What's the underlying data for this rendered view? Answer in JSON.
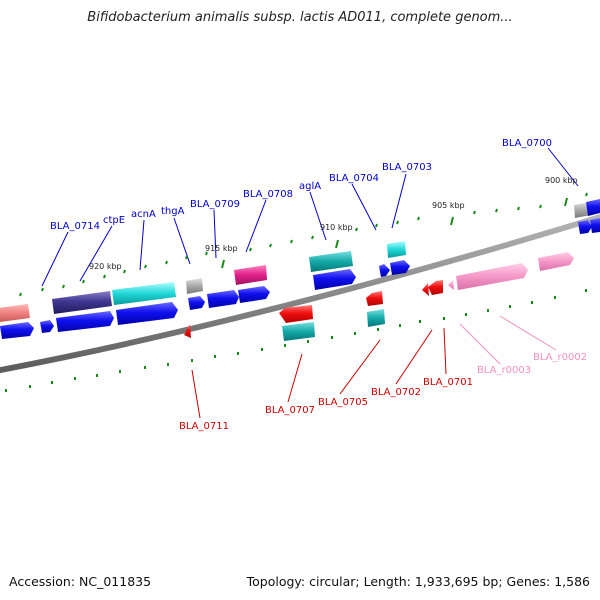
{
  "title": "Bifidobacterium animalis subsp. lactis AD011, complete genom...",
  "footer": {
    "accession": "Accession: NC_011835",
    "summary": "Topology: circular; Length: 1,933,695 bp; Genes: 1,586"
  },
  "ruler_labels": [
    "920 kbp",
    "915 kbp",
    "910 kbp",
    "905 kbp",
    "900 kbp"
  ],
  "upper_labels": [
    "BLA_0714",
    "ctpE",
    "acnA",
    "thgA",
    "BLA_0709",
    "BLA_0708",
    "aglA",
    "BLA_0704",
    "BLA_0703",
    "BLA_0700"
  ],
  "lower_labels": [
    "BLA_0711",
    "BLA_0707",
    "BLA_0705",
    "BLA_0702",
    "BLA_0701",
    "BLA_r0003",
    "BLA_r0002"
  ],
  "colors": {
    "forward_gene": "#0000e0",
    "reverse_gene": "#e00000",
    "cyan_feature": "#00c8c8",
    "rna_gene": "#f090c0",
    "backbone": "#808080",
    "tick": "#1a8a1a"
  }
}
